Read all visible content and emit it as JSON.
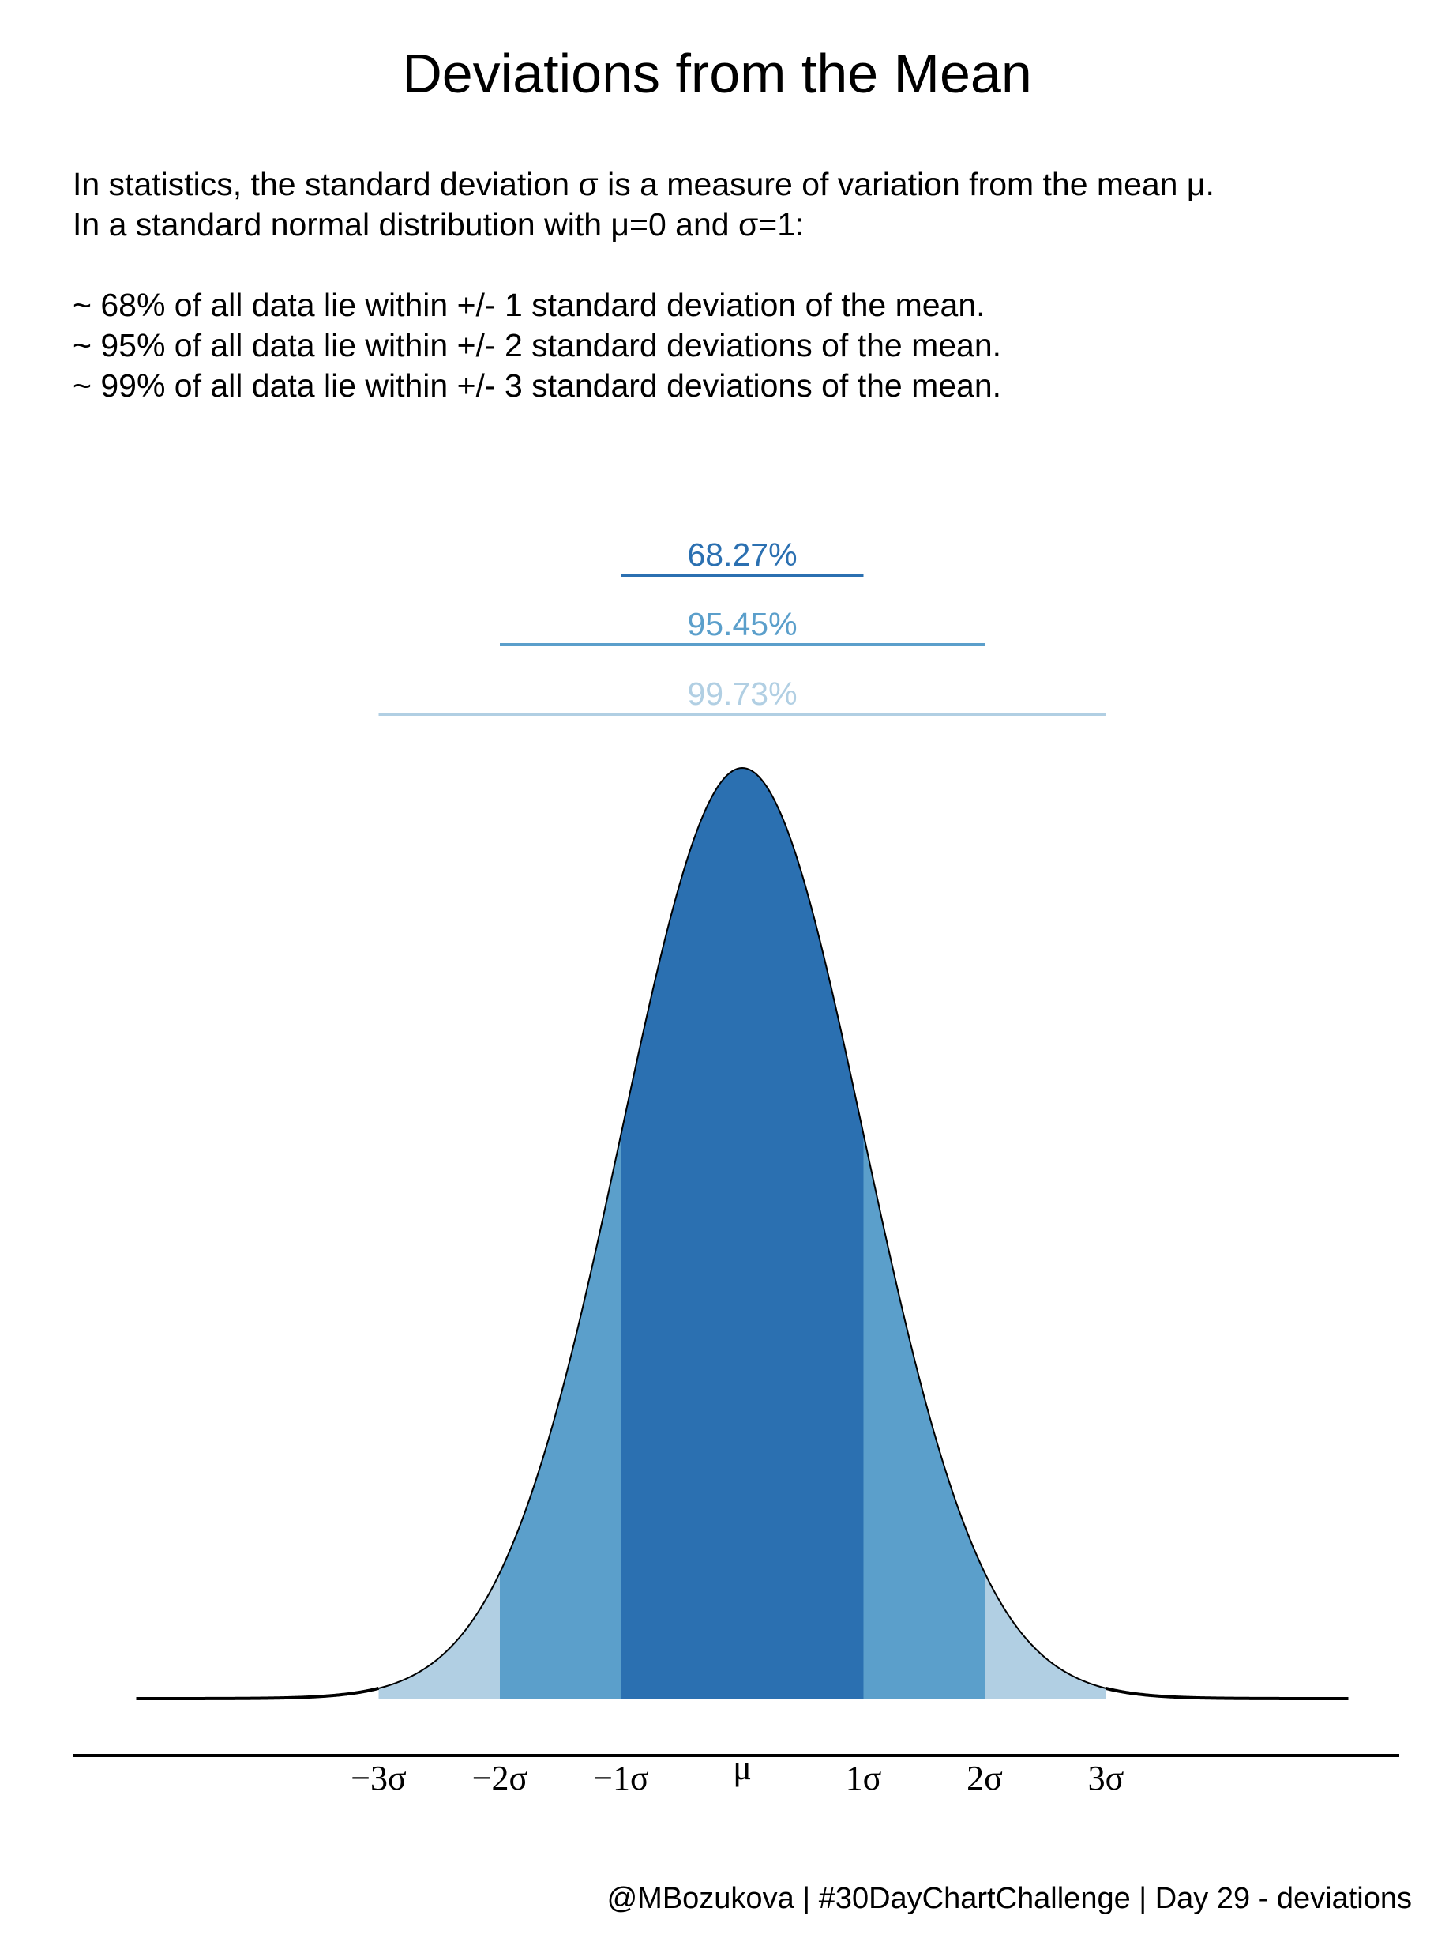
{
  "title": "Deviations from the Mean",
  "subtitle_lines": [
    "In statistics, the standard deviation σ is a measure of variation from the mean μ.",
    "In a standard normal distribution with μ=0 and σ=1:",
    "",
    "~ 68% of all data lie within +/- 1 standard deviation of the mean.",
    "~ 95% of all data lie within +/- 2 standard deviations of the mean.",
    "~ 99% of all data lie within +/- 3 standard deviations of the mean."
  ],
  "caption": "@MBozukova | #30DayChartChallenge | Day 29 - deviations",
  "chart_data": {
    "type": "area",
    "distribution": "standard normal",
    "mean": 0,
    "sd": 1,
    "xlim": [
      -5,
      5
    ],
    "x_ticks": [
      {
        "value": -3,
        "label": "−3σ"
      },
      {
        "value": -2,
        "label": "−2σ"
      },
      {
        "value": -1,
        "label": "−1σ"
      },
      {
        "value": 0,
        "label": "μ"
      },
      {
        "value": 1,
        "label": "1σ"
      },
      {
        "value": 2,
        "label": "2σ"
      },
      {
        "value": 3,
        "label": "3σ"
      }
    ],
    "bands": [
      {
        "from": -3,
        "to": 3,
        "color": "#b1cfe3"
      },
      {
        "from": -2,
        "to": 2,
        "color": "#5b9fcb"
      },
      {
        "from": -1,
        "to": 1,
        "color": "#2b70b1"
      }
    ],
    "intervals": [
      {
        "from": -1,
        "to": 1,
        "label": "68.27%",
        "color": "#2b70b1"
      },
      {
        "from": -2,
        "to": 2,
        "label": "95.45%",
        "color": "#5b9fcb"
      },
      {
        "from": -3,
        "to": 3,
        "label": "99.73%",
        "color": "#b1cfe3"
      }
    ],
    "grid": false,
    "legend": "none"
  }
}
